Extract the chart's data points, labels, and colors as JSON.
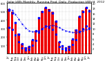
{
  "title": "Solar kWh Monthly  Running Prod  Daily  Production kWh/d  2012",
  "months": [
    "Jul",
    "Aug",
    "Sep",
    "Oct",
    "Nov",
    "Dec",
    "Jan",
    "Feb",
    "Mar",
    "Apr",
    "May",
    "Jun",
    "Jul",
    "Aug",
    "Sep",
    "Oct",
    "Nov",
    "Dec",
    "Jan",
    "Feb",
    "Mar",
    "Apr",
    "May",
    "Jun",
    "Jul"
  ],
  "bar_values": [
    530,
    500,
    370,
    240,
    120,
    75,
    85,
    155,
    275,
    430,
    510,
    545,
    530,
    495,
    385,
    145,
    95,
    70,
    90,
    165,
    285,
    440,
    515,
    550,
    525
  ],
  "running_avg": [
    530,
    515,
    467,
    410,
    353,
    307,
    274,
    261,
    260,
    272,
    292,
    320,
    330,
    334,
    329,
    309,
    291,
    273,
    260,
    252,
    250,
    258,
    271,
    288,
    297
  ],
  "daily_values": [
    17.1,
    16.1,
    12.3,
    7.7,
    4.0,
    2.4,
    2.7,
    5.5,
    8.9,
    14.3,
    16.5,
    18.2,
    17.1,
    16.0,
    12.8,
    4.7,
    3.2,
    2.3,
    2.9,
    5.9,
    9.2,
    14.7,
    16.6,
    18.3,
    16.9
  ],
  "bar_color": "#ee0000",
  "avg_color": "#0000ff",
  "daily_color": "#0000ff",
  "bg_color": "#ffffff",
  "plot_bg": "#ffffff",
  "ylim_kwh": [
    0,
    600
  ],
  "yticks_kwh": [
    100,
    200,
    300,
    400,
    500,
    600
  ],
  "ylim_daily": [
    0,
    20
  ],
  "yticks_daily": [
    2,
    4,
    6,
    8,
    10,
    12,
    14,
    16,
    18,
    20
  ],
  "grid_color": "#bbbbbb",
  "title_fontsize": 3.2,
  "tick_fontsize": 2.6,
  "label_fontsize": 2.8
}
